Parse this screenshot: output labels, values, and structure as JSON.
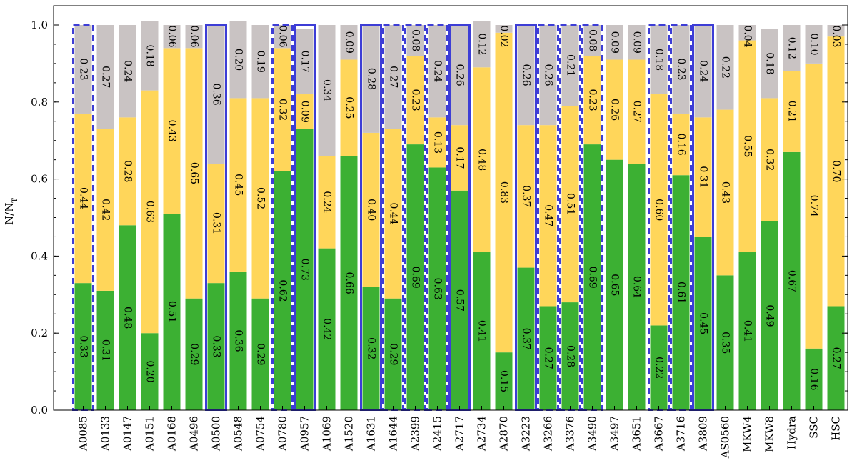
{
  "chart_data": {
    "type": "bar",
    "stacked": true,
    "title": "",
    "xlabel": "",
    "ylabel": "N/N",
    "ylabel_subscript": "T",
    "ylim": [
      0,
      1.05
    ],
    "yticks": [
      "0.0",
      "0.2",
      "0.4",
      "0.6",
      "0.8",
      "1.0"
    ],
    "ytick_values": [
      0,
      0.2,
      0.4,
      0.6,
      0.8,
      1.0
    ],
    "colors": {
      "green": "#3cb033",
      "yellow": "#ffd65a",
      "gray": "#c9c3c3",
      "outline": "#3d3dd6"
    },
    "categories": [
      "A0085",
      "A0133",
      "A0147",
      "A0151",
      "A0168",
      "A0496",
      "A0500",
      "A0548",
      "A0754",
      "A0780",
      "A0957",
      "A1069",
      "A1520",
      "A1631",
      "A1644",
      "A2399",
      "A2415",
      "A2717",
      "A2734",
      "A2870",
      "A3223",
      "A3266",
      "A3376",
      "A3490",
      "A3497",
      "A3651",
      "A3667",
      "A3716",
      "A3809",
      "AS0560",
      "MKW4",
      "MKW8",
      "Hydra",
      "SSC",
      "HSC"
    ],
    "series": [
      {
        "name": "green",
        "values": [
          0.33,
          0.31,
          0.48,
          0.2,
          0.51,
          0.29,
          0.33,
          0.36,
          0.29,
          0.62,
          0.73,
          0.42,
          0.66,
          0.32,
          0.29,
          0.69,
          0.63,
          0.57,
          0.41,
          0.15,
          0.37,
          0.27,
          0.28,
          0.69,
          0.65,
          0.64,
          0.22,
          0.61,
          0.45,
          0.35,
          0.41,
          0.49,
          0.67,
          0.16,
          0.27
        ]
      },
      {
        "name": "yellow",
        "values": [
          0.44,
          0.42,
          0.28,
          0.63,
          0.43,
          0.65,
          0.31,
          0.45,
          0.52,
          0.32,
          0.09,
          0.24,
          0.25,
          0.4,
          0.44,
          0.23,
          0.13,
          0.17,
          0.48,
          0.83,
          0.37,
          0.47,
          0.51,
          0.23,
          0.26,
          0.27,
          0.6,
          0.16,
          0.31,
          0.43,
          0.55,
          0.32,
          0.21,
          0.74,
          0.7
        ]
      },
      {
        "name": "gray",
        "values": [
          0.23,
          0.27,
          0.24,
          0.18,
          0.06,
          0.06,
          0.36,
          0.2,
          0.19,
          0.06,
          0.17,
          0.34,
          0.09,
          0.28,
          0.27,
          0.08,
          0.24,
          0.26,
          0.12,
          0.02,
          0.26,
          0.26,
          0.21,
          0.08,
          0.09,
          0.09,
          0.18,
          0.23,
          0.24,
          0.22,
          0.04,
          0.18,
          0.12,
          0.1,
          0.03
        ]
      }
    ],
    "labels": {
      "green": [
        "0.33",
        "0.31",
        "0.48",
        "0.20",
        "0.51",
        "0.29",
        "0.33",
        "0.36",
        "0.29",
        "0.62",
        "0.73",
        "0.42",
        "0.66",
        "0.32",
        "0.29",
        "0.69",
        "0.63",
        "0.57",
        "0.41",
        "0.15",
        "0.37",
        "0.27",
        "0.28",
        "0.69",
        "0.65",
        "0.64",
        "0.22",
        "0.61",
        "0.45",
        "0.35",
        "0.41",
        "0.49",
        "0.67",
        "0.16",
        "0.27"
      ],
      "yellow": [
        "0.44",
        "0.42",
        "0.28",
        "0.63",
        "0.43",
        "0.65",
        "0.31",
        "0.45",
        "0.52",
        "0.32",
        "0.09",
        "0.24",
        "0.25",
        "0.40",
        "0.44",
        "0.23",
        "0.13",
        "0.17",
        "0.48",
        "0.83",
        "0.37",
        "0.47",
        "0.51",
        "0.23",
        "0.26",
        "0.27",
        "0.60",
        "0.16",
        "0.31",
        "0.43",
        "0.55",
        "0.32",
        "0.21",
        "0.74",
        "0.70"
      ],
      "gray": [
        "0.23",
        "0.27",
        "0.24",
        "0.18",
        "0.06",
        "0.06",
        "0.36",
        "0.20",
        "0.19",
        "0.06",
        "0.17",
        "0.34",
        "0.09",
        "0.28",
        "0.27",
        "0.08",
        "0.24",
        "0.26",
        "0.12",
        "0.02",
        "0.26",
        "0.26",
        "0.21",
        "0.08",
        "0.09",
        "0.09",
        "0.18",
        "0.23",
        "0.24",
        "0.22",
        "0.04",
        "0.18",
        "0.12",
        "0.10",
        "0.03"
      ]
    },
    "outline": [
      "dashed",
      "none",
      "none",
      "none",
      "none",
      "none",
      "solid",
      "none",
      "none",
      "dashed",
      "solid",
      "none",
      "none",
      "solid",
      "dashed",
      "dashed",
      "dashed",
      "solid",
      "none",
      "none",
      "solid",
      "dashed",
      "dashed",
      "dashed",
      "none",
      "none",
      "dashed",
      "dashed",
      "solid",
      "none",
      "none",
      "none",
      "none",
      "none",
      "none"
    ]
  }
}
